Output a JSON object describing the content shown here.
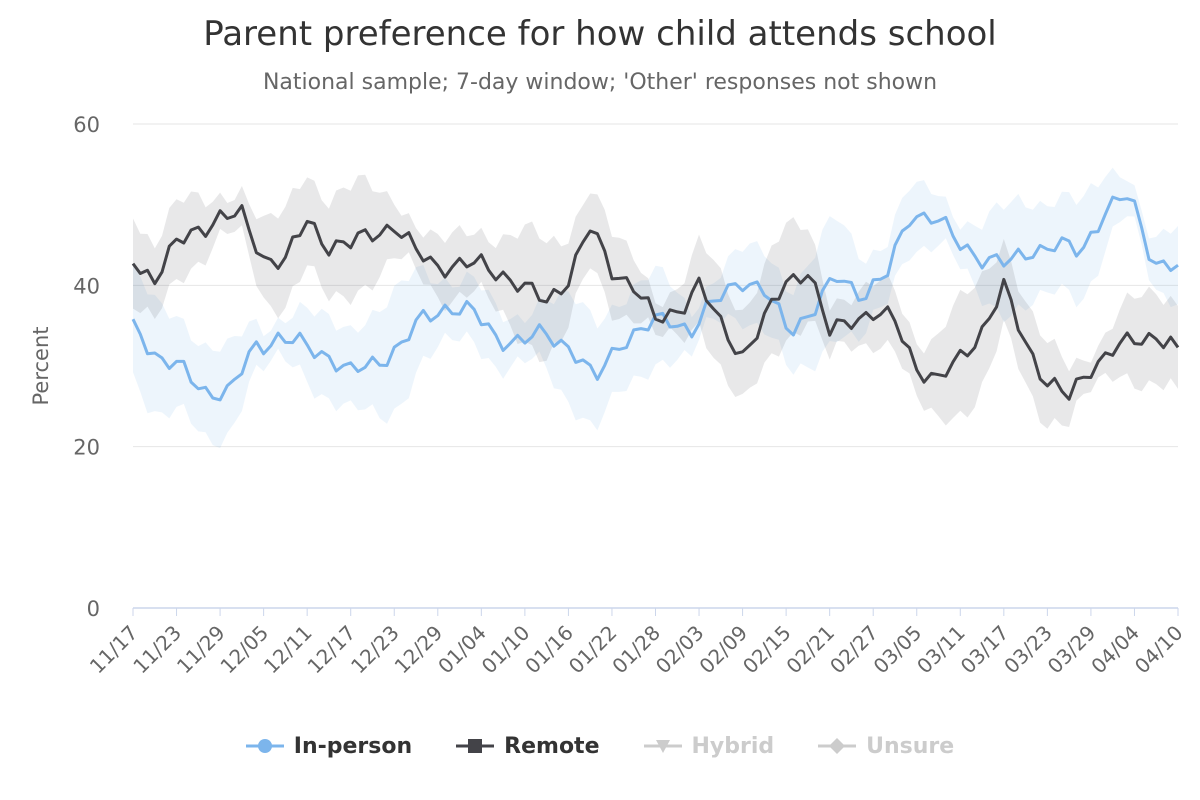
{
  "chart_data": {
    "type": "line",
    "title": "Parent preference for how child attends school",
    "subtitle": "National sample; 7-day window; 'Other' responses not shown",
    "xlabel": "",
    "ylabel": "Percent",
    "ylim": [
      0,
      60
    ],
    "yticks": [
      0,
      20,
      40,
      60
    ],
    "grid": true,
    "legend_position": "bottom",
    "x_tick_labels": [
      "11/17",
      "11/23",
      "11/29",
      "12/05",
      "12/11",
      "12/17",
      "12/23",
      "12/29",
      "01/04",
      "01/10",
      "01/16",
      "01/22",
      "01/28",
      "02/03",
      "02/09",
      "02/15",
      "02/21",
      "02/27",
      "03/05",
      "03/11",
      "03/17",
      "03/23",
      "03/29",
      "04/04",
      "04/10"
    ],
    "x_anchor_values": [
      0,
      6,
      12,
      18,
      24,
      30,
      36,
      42,
      48,
      54,
      60,
      66,
      72,
      78,
      84,
      90,
      96,
      102,
      108,
      114,
      120,
      126,
      132,
      138,
      144
    ],
    "in_person_anchors": [
      35.8,
      31.0,
      29.5,
      27.0,
      26.5,
      32.5,
      33.5,
      32.5,
      31.5,
      29.0,
      30.5,
      32.5,
      36.0,
      37.5,
      36.5,
      33.5,
      33.0,
      34.0,
      32.5,
      28.0,
      33.0,
      34.5,
      36.0,
      34.5,
      38.0,
      41.0,
      39.0,
      34.5,
      37.0,
      41.0,
      39.0,
      41.0,
      49.0,
      48.5,
      45.0,
      43.5,
      42.5,
      44.5,
      45.0,
      44.0,
      49.5,
      51.0,
      43.0,
      42.5
    ],
    "remote_anchors": [
      42.7,
      41.0,
      45.0,
      47.0,
      48.5,
      48.5,
      43.5,
      43.0,
      48.0,
      45.0,
      45.0,
      46.5,
      47.5,
      44.0,
      42.5,
      42.5,
      42.5,
      41.5,
      39.5,
      38.0,
      41.0,
      47.0,
      42.0,
      40.0,
      35.5,
      37.0,
      40.0,
      35.0,
      31.5,
      35.5,
      40.5,
      42.0,
      34.0,
      36.0,
      36.5,
      35.5,
      30.0,
      28.0,
      31.0,
      34.5,
      39.5,
      33.0,
      28.0,
      26.0,
      30.0,
      32.0,
      33.0,
      34.0,
      32.3
    ],
    "in_person_hidden_note": "",
    "series": [
      {
        "name": "In-person",
        "color": "#7cb5ec",
        "visible": true
      },
      {
        "name": "Remote",
        "color": "#434348",
        "visible": true
      },
      {
        "name": "Hybrid",
        "color": "#cccccc",
        "visible": false
      },
      {
        "name": "Unsure",
        "color": "#cccccc",
        "visible": false
      }
    ]
  }
}
